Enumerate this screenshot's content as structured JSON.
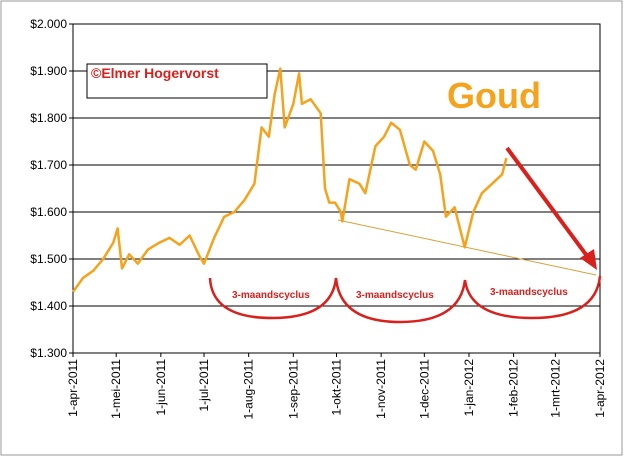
{
  "chart_data": {
    "type": "line",
    "color": "#f5a21c",
    "grid": true,
    "annotations": [
      "©Elmer Hogervorst",
      "Goud",
      "3-maandscyclus",
      "3-maandscyclus",
      "3-maandscyclus"
    ],
    "x": [
      "2011-04-01",
      "2011-04-08",
      "2011-04-15",
      "2011-04-22",
      "2011-04-29",
      "2011-05-02",
      "2011-05-05",
      "2011-05-10",
      "2011-05-16",
      "2011-05-23",
      "2011-05-31",
      "2011-06-07",
      "2011-06-14",
      "2011-06-21",
      "2011-06-28",
      "2011-07-01",
      "2011-07-08",
      "2011-07-15",
      "2011-07-22",
      "2011-07-29",
      "2011-08-05",
      "2011-08-10",
      "2011-08-15",
      "2011-08-19",
      "2011-08-23",
      "2011-08-26",
      "2011-09-01",
      "2011-09-05",
      "2011-09-07",
      "2011-09-13",
      "2011-09-20",
      "2011-09-23",
      "2011-09-26",
      "2011-09-30",
      "2011-10-04",
      "2011-10-05",
      "2011-10-10",
      "2011-10-17",
      "2011-10-21",
      "2011-10-28",
      "2011-11-03",
      "2011-11-08",
      "2011-11-14",
      "2011-11-21",
      "2011-11-25",
      "2011-12-01",
      "2011-12-07",
      "2011-12-12",
      "2011-12-16",
      "2011-12-22",
      "2011-12-29",
      "2012-01-04",
      "2012-01-10",
      "2012-01-17",
      "2012-01-24",
      "2012-01-27"
    ],
    "values": [
      1430,
      1460,
      1475,
      1500,
      1535,
      1565,
      1480,
      1510,
      1490,
      1520,
      1535,
      1545,
      1530,
      1550,
      1505,
      1490,
      1545,
      1590,
      1600,
      1625,
      1660,
      1780,
      1760,
      1850,
      1905,
      1780,
      1830,
      1895,
      1830,
      1840,
      1810,
      1650,
      1620,
      1620,
      1600,
      1580,
      1670,
      1660,
      1640,
      1740,
      1760,
      1790,
      1775,
      1700,
      1690,
      1750,
      1730,
      1680,
      1590,
      1610,
      1525,
      1600,
      1640,
      1660,
      1680,
      1715
    ],
    "xlim": [
      "2011-04-01",
      "2012-04-01"
    ],
    "xticks": [
      {
        "value": "2011-04-01",
        "label": "1-apr-2011"
      },
      {
        "value": "2011-05-01",
        "label": "1-mei-2011"
      },
      {
        "value": "2011-06-01",
        "label": "1-jun-2011"
      },
      {
        "value": "2011-07-01",
        "label": "1-jul-2011"
      },
      {
        "value": "2011-08-01",
        "label": "1-aug-2011"
      },
      {
        "value": "2011-09-01",
        "label": "1-sep-2011"
      },
      {
        "value": "2011-10-01",
        "label": "1-okt-2011"
      },
      {
        "value": "2011-11-01",
        "label": "1-nov-2011"
      },
      {
        "value": "2011-12-01",
        "label": "1-dec-2011"
      },
      {
        "value": "2012-01-01",
        "label": "1-jan-2012"
      },
      {
        "value": "2012-02-01",
        "label": "1-feb-2012"
      },
      {
        "value": "2012-03-01",
        "label": "1-mrt-2012"
      },
      {
        "value": "2012-04-01",
        "label": "1-apr-2012"
      }
    ],
    "ylim": [
      1300,
      2000
    ],
    "yticks": [
      {
        "value": 1300,
        "label": "$1.300"
      },
      {
        "value": 1400,
        "label": "$1.400"
      },
      {
        "value": 1500,
        "label": "$1.500"
      },
      {
        "value": 1600,
        "label": "$1.600"
      },
      {
        "value": 1700,
        "label": "$1.700"
      },
      {
        "value": 1800,
        "label": "$1.800"
      },
      {
        "value": 1900,
        "label": "$1.900"
      },
      {
        "value": 2000,
        "label": "$2.000"
      }
    ]
  }
}
